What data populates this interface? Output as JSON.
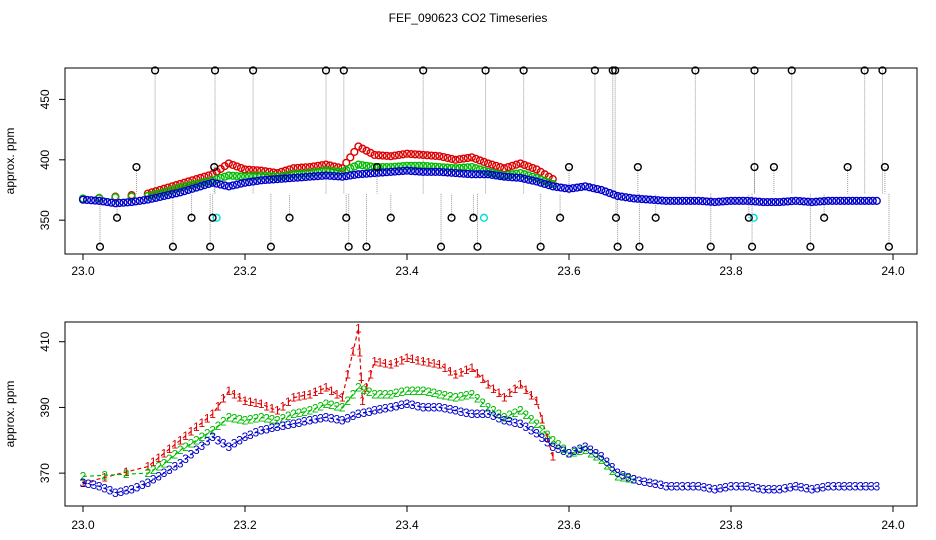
{
  "title": "FEF_090623  CO2 Timeseries",
  "colors": {
    "series1": "#dd0000",
    "series2": "#00bb00",
    "series3": "#0000cc",
    "flag": "#00dddd",
    "outlier": "#000000",
    "dropline": "#999999"
  },
  "chart_data": [
    {
      "type": "scatter",
      "title": "FEF_090623  CO2 Timeseries",
      "xlabel": "",
      "ylabel": "approx. ppm",
      "xlim": [
        23.0,
        24.0
      ],
      "ylim": [
        322,
        476
      ],
      "xticks": [
        "23.0",
        "23.2",
        "23.4",
        "23.6",
        "23.8",
        "24.0"
      ],
      "yticks": [
        "350",
        "400",
        "450"
      ],
      "series": [
        {
          "name": "red",
          "x": [
            23.0,
            23.08,
            23.1,
            23.12,
            23.14,
            23.16,
            23.18,
            23.2,
            23.22,
            23.24,
            23.26,
            23.28,
            23.3,
            23.32,
            23.34,
            23.36,
            23.38,
            23.4,
            23.42,
            23.44,
            23.46,
            23.48,
            23.5,
            23.52,
            23.54,
            23.56,
            23.58
          ],
          "y": [
            367,
            372,
            376,
            380,
            384,
            388,
            397,
            392,
            391,
            389,
            393,
            394,
            396,
            393,
            411,
            404,
            403,
            405,
            404,
            403,
            400,
            402,
            397,
            393,
            397,
            392,
            384
          ]
        },
        {
          "name": "green",
          "x": [
            23.0,
            23.08,
            23.1,
            23.12,
            23.14,
            23.16,
            23.18,
            23.2,
            23.22,
            23.24,
            23.26,
            23.28,
            23.3,
            23.32,
            23.34,
            23.36,
            23.38,
            23.4,
            23.42,
            23.44,
            23.46,
            23.48,
            23.5,
            23.52,
            23.54,
            23.56,
            23.58
          ],
          "y": [
            368,
            370,
            373,
            377,
            380,
            383,
            387,
            386,
            387,
            386,
            388,
            389,
            391,
            390,
            396,
            394,
            394,
            395,
            395,
            394,
            393,
            394,
            390,
            387,
            389,
            385,
            380
          ]
        },
        {
          "name": "blue",
          "x": [
            23.0,
            23.02,
            23.04,
            23.06,
            23.08,
            23.1,
            23.12,
            23.14,
            23.16,
            23.18,
            23.2,
            23.22,
            23.24,
            23.26,
            23.28,
            23.3,
            23.32,
            23.34,
            23.36,
            23.38,
            23.4,
            23.42,
            23.44,
            23.46,
            23.48,
            23.5,
            23.52,
            23.54,
            23.56,
            23.58,
            23.6,
            23.62,
            23.64,
            23.66,
            23.68,
            23.7,
            23.72,
            23.74,
            23.76,
            23.78,
            23.8,
            23.82,
            23.84,
            23.86,
            23.88,
            23.9,
            23.92,
            23.94,
            23.96,
            23.98
          ],
          "y": [
            367,
            366,
            364,
            365,
            367,
            370,
            373,
            377,
            381,
            378,
            381,
            383,
            384,
            385,
            386,
            387,
            386,
            388,
            389,
            390,
            391,
            390,
            390,
            389,
            388,
            388,
            386,
            385,
            382,
            378,
            376,
            378,
            375,
            370,
            368,
            367,
            366,
            366,
            366,
            365,
            366,
            366,
            365,
            365,
            366,
            365,
            366,
            366,
            366,
            366
          ]
        },
        {
          "name": "cyan",
          "x": [
            23.165,
            23.495,
            23.828
          ],
          "y": [
            352,
            352,
            352
          ]
        },
        {
          "name": "outliers-high",
          "x": [
            23.089,
            23.163,
            23.21,
            23.3,
            23.322,
            23.42,
            23.497,
            23.544,
            23.632,
            23.654,
            23.657,
            23.756,
            23.829,
            23.875,
            23.965,
            23.987
          ],
          "y": [
            474,
            474,
            474,
            474,
            474,
            474,
            474,
            474,
            474,
            474,
            474,
            474,
            474,
            474,
            474,
            474
          ]
        },
        {
          "name": "outliers-mid",
          "x": [
            23.066,
            23.162,
            23.363,
            23.6,
            23.685,
            23.829,
            23.853,
            23.944,
            23.99
          ],
          "y": [
            394,
            394,
            394,
            394,
            394,
            394,
            394,
            394,
            394
          ]
        },
        {
          "name": "outliers-low",
          "x": [
            23.042,
            23.134,
            23.16,
            23.255,
            23.325,
            23.38,
            23.455,
            23.482,
            23.589,
            23.658,
            23.707,
            23.822,
            23.915
          ],
          "y": [
            352,
            352,
            352,
            352,
            352,
            352,
            352,
            352,
            352,
            352,
            352,
            352,
            352
          ]
        },
        {
          "name": "outliers-bottom",
          "x": [
            23.021,
            23.111,
            23.157,
            23.232,
            23.328,
            23.35,
            23.442,
            23.487,
            23.565,
            23.66,
            23.687,
            23.775,
            23.826,
            23.898,
            23.995
          ],
          "y": [
            328,
            328,
            328,
            328,
            328,
            328,
            328,
            328,
            328,
            328,
            328,
            328,
            328,
            328,
            328
          ]
        }
      ]
    },
    {
      "type": "line",
      "title": "",
      "xlabel": "",
      "ylabel": "approx. ppm",
      "xlim": [
        23.0,
        24.0
      ],
      "ylim": [
        360,
        416
      ],
      "xticks": [
        "23.0",
        "23.2",
        "23.4",
        "23.6",
        "23.8",
        "24.0"
      ],
      "yticks": [
        "370",
        "390",
        "410"
      ],
      "series": [
        {
          "name": "1",
          "label": "1",
          "x": [
            23.0,
            23.08,
            23.1,
            23.12,
            23.14,
            23.16,
            23.18,
            23.2,
            23.22,
            23.24,
            23.26,
            23.28,
            23.3,
            23.32,
            23.34,
            23.345,
            23.36,
            23.38,
            23.4,
            23.42,
            23.44,
            23.46,
            23.48,
            23.5,
            23.52,
            23.54,
            23.56,
            23.58
          ],
          "y": [
            367,
            372,
            376,
            380,
            384,
            388,
            395,
            392,
            391,
            389,
            393,
            394,
            396,
            393,
            414,
            392,
            404,
            403,
            405,
            404,
            403,
            400,
            402,
            397,
            393,
            397,
            392,
            375
          ]
        },
        {
          "name": "2",
          "label": "2",
          "x": [
            23.0,
            23.08,
            23.1,
            23.12,
            23.14,
            23.16,
            23.18,
            23.2,
            23.22,
            23.24,
            23.26,
            23.28,
            23.3,
            23.32,
            23.34,
            23.36,
            23.38,
            23.4,
            23.42,
            23.44,
            23.46,
            23.48,
            23.5,
            23.52,
            23.54,
            23.56,
            23.58,
            23.6,
            23.62,
            23.64,
            23.66,
            23.68
          ],
          "y": [
            369,
            370,
            373,
            377,
            380,
            383,
            387,
            386,
            387,
            386,
            388,
            389,
            391,
            390,
            396,
            394,
            394,
            395,
            395,
            394,
            393,
            394,
            390,
            387,
            389,
            385,
            380,
            376,
            377,
            374,
            369,
            368
          ]
        },
        {
          "name": "3",
          "label": "3",
          "x": [
            23.0,
            23.02,
            23.04,
            23.06,
            23.08,
            23.1,
            23.12,
            23.14,
            23.16,
            23.18,
            23.2,
            23.22,
            23.24,
            23.26,
            23.28,
            23.3,
            23.32,
            23.34,
            23.36,
            23.38,
            23.4,
            23.42,
            23.44,
            23.46,
            23.48,
            23.5,
            23.52,
            23.54,
            23.56,
            23.58,
            23.6,
            23.62,
            23.64,
            23.66,
            23.68,
            23.7,
            23.72,
            23.74,
            23.76,
            23.78,
            23.8,
            23.82,
            23.84,
            23.86,
            23.88,
            23.9,
            23.92,
            23.94,
            23.96,
            23.98
          ],
          "y": [
            367,
            366,
            364,
            365,
            367,
            370,
            373,
            377,
            381,
            378,
            381,
            383,
            384,
            385,
            386,
            387,
            386,
            388,
            389,
            390,
            391,
            390,
            390,
            389,
            388,
            388,
            386,
            385,
            382,
            378,
            376,
            378,
            375,
            370,
            368,
            367,
            366,
            366,
            366,
            365,
            366,
            366,
            365,
            365,
            366,
            365,
            366,
            366,
            366,
            366
          ]
        }
      ]
    }
  ]
}
